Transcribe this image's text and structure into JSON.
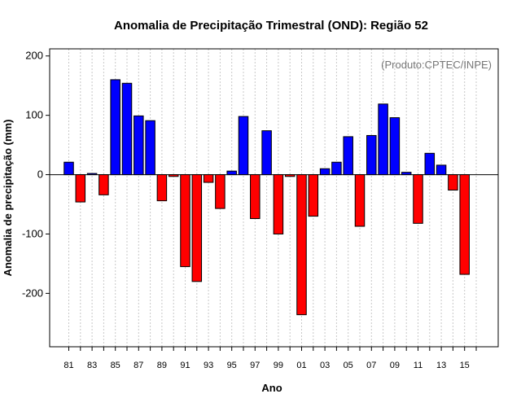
{
  "chart_data": {
    "type": "bar",
    "title": "Anomalia de Precipitação Trimestral (OND): Região 52",
    "xlabel": "Ano",
    "ylabel": "Anomalia de precipitação (mm)",
    "annotation": "(Produto:CPTEC/INPE)",
    "ylim": [
      -290,
      212
    ],
    "yticks": [
      -200,
      -100,
      0,
      100,
      200
    ],
    "ytick_labels": [
      "-200",
      "-100",
      "0",
      "100",
      "200"
    ],
    "xtick_labels": [
      "81",
      "83",
      "85",
      "87",
      "89",
      "91",
      "93",
      "95",
      "97",
      "99",
      "01",
      "03",
      "05",
      "07",
      "09",
      "11",
      "13",
      "15"
    ],
    "grid": true,
    "positive_color": "#0000ff",
    "negative_color": "#ff0000",
    "years": [
      "1981",
      "1982",
      "1983",
      "1984",
      "1985",
      "1986",
      "1987",
      "1988",
      "1989",
      "1990",
      "1991",
      "1992",
      "1993",
      "1994",
      "1995",
      "1996",
      "1997",
      "1998",
      "1999",
      "2000",
      "2001",
      "2002",
      "2003",
      "2004",
      "2005",
      "2006",
      "2007",
      "2008",
      "2009",
      "2010",
      "2011",
      "2012",
      "2013",
      "2014",
      "2015"
    ],
    "values": [
      21,
      -46,
      2,
      -34,
      160,
      154,
      99,
      91,
      -44,
      -3,
      -155,
      -180,
      -13,
      -57,
      6,
      98,
      -74,
      74,
      -100,
      -3,
      -236,
      -70,
      10,
      21,
      64,
      -87,
      66,
      119,
      96,
      4,
      -82,
      36,
      16,
      -26,
      -168
    ]
  }
}
